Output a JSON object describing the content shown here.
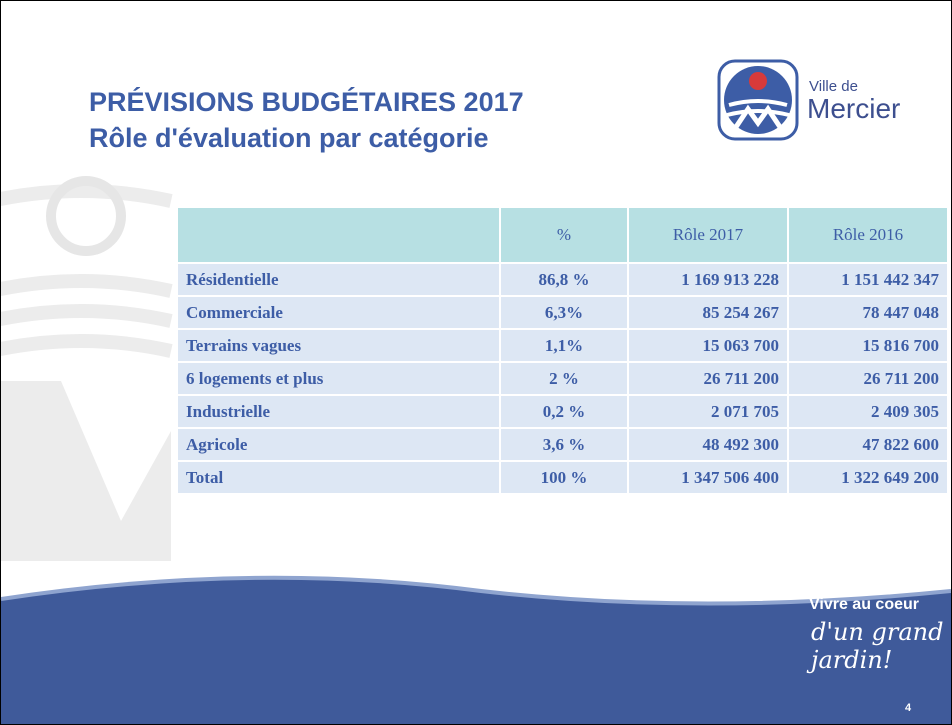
{
  "header": {
    "title": "PRÉVISIONS BUDGÉTAIRES 2017",
    "subtitle": "Rôle d'évaluation par catégorie"
  },
  "logo": {
    "small": "Ville de",
    "big": "Mercier"
  },
  "table": {
    "columns": [
      "%",
      "Rôle 2017",
      "Rôle 2016"
    ],
    "rows": [
      [
        "Résidentielle",
        "86,8 %",
        "1 169 913 228",
        "1 151 442 347"
      ],
      [
        "Commerciale",
        "6,3%",
        "85 254 267",
        "78 447 048"
      ],
      [
        "Terrains vagues",
        "1,1%",
        "15 063 700",
        "15 816 700"
      ],
      [
        "6 logements et plus",
        "2 %",
        "26 711 200",
        "26 711 200"
      ],
      [
        "Industrielle",
        "0,2 %",
        "2 071 705",
        "2 409 305"
      ],
      [
        "Agricole",
        "3,6 %",
        "48 492 300",
        "47 822 600"
      ],
      [
        "Total",
        "100 %",
        "1 347 506 400",
        "1 322 649 200"
      ]
    ]
  },
  "footer": {
    "line1": "Vivre au coeur",
    "line2": "d'un grand jardin!",
    "page": "4"
  }
}
